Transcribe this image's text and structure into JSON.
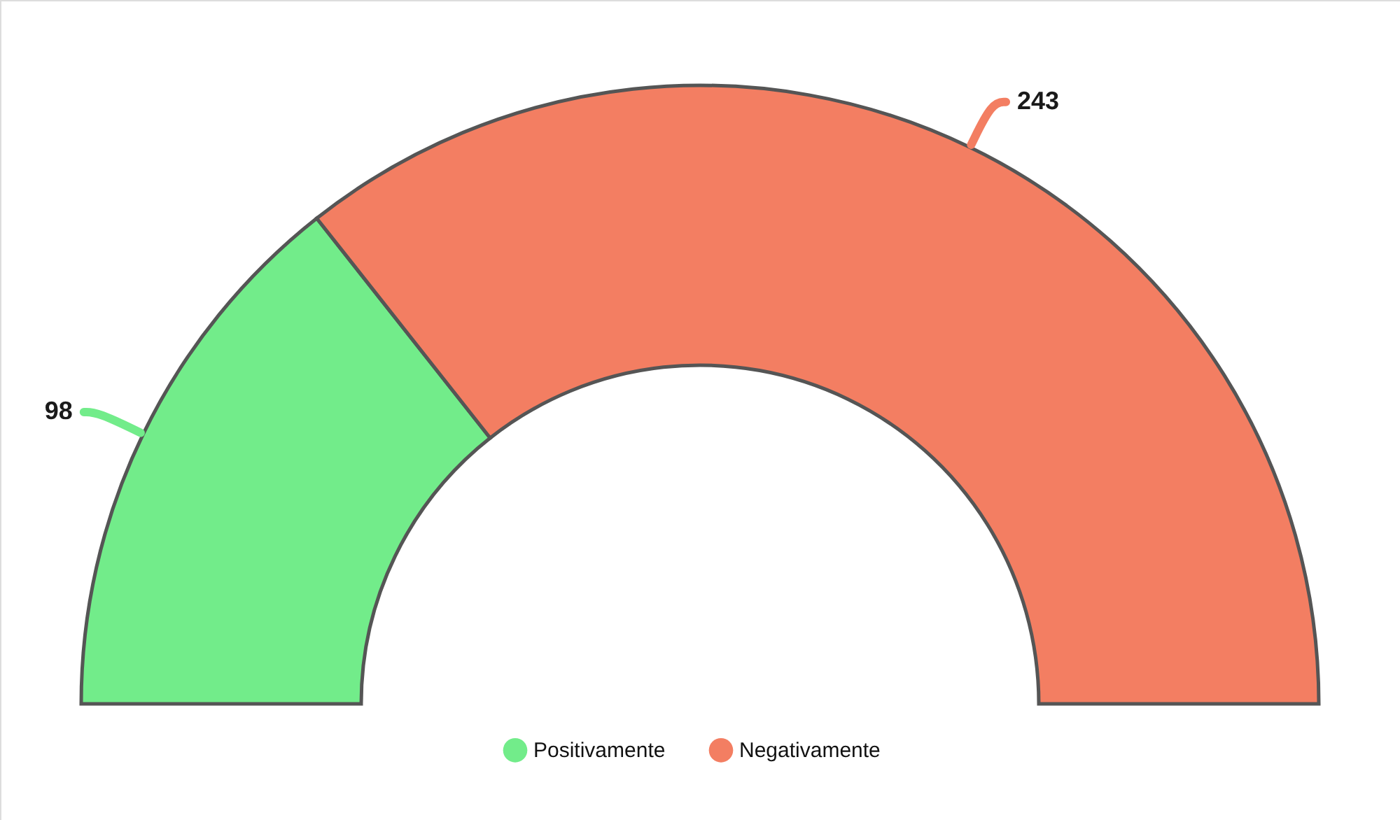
{
  "chart_data": {
    "type": "donut",
    "categories": [
      "Positivamente",
      "Negativamente"
    ],
    "values": [
      98,
      243
    ],
    "colors": [
      "#72ec8a",
      "#f37e62"
    ],
    "data_labels": true,
    "legend": "bottom"
  }
}
